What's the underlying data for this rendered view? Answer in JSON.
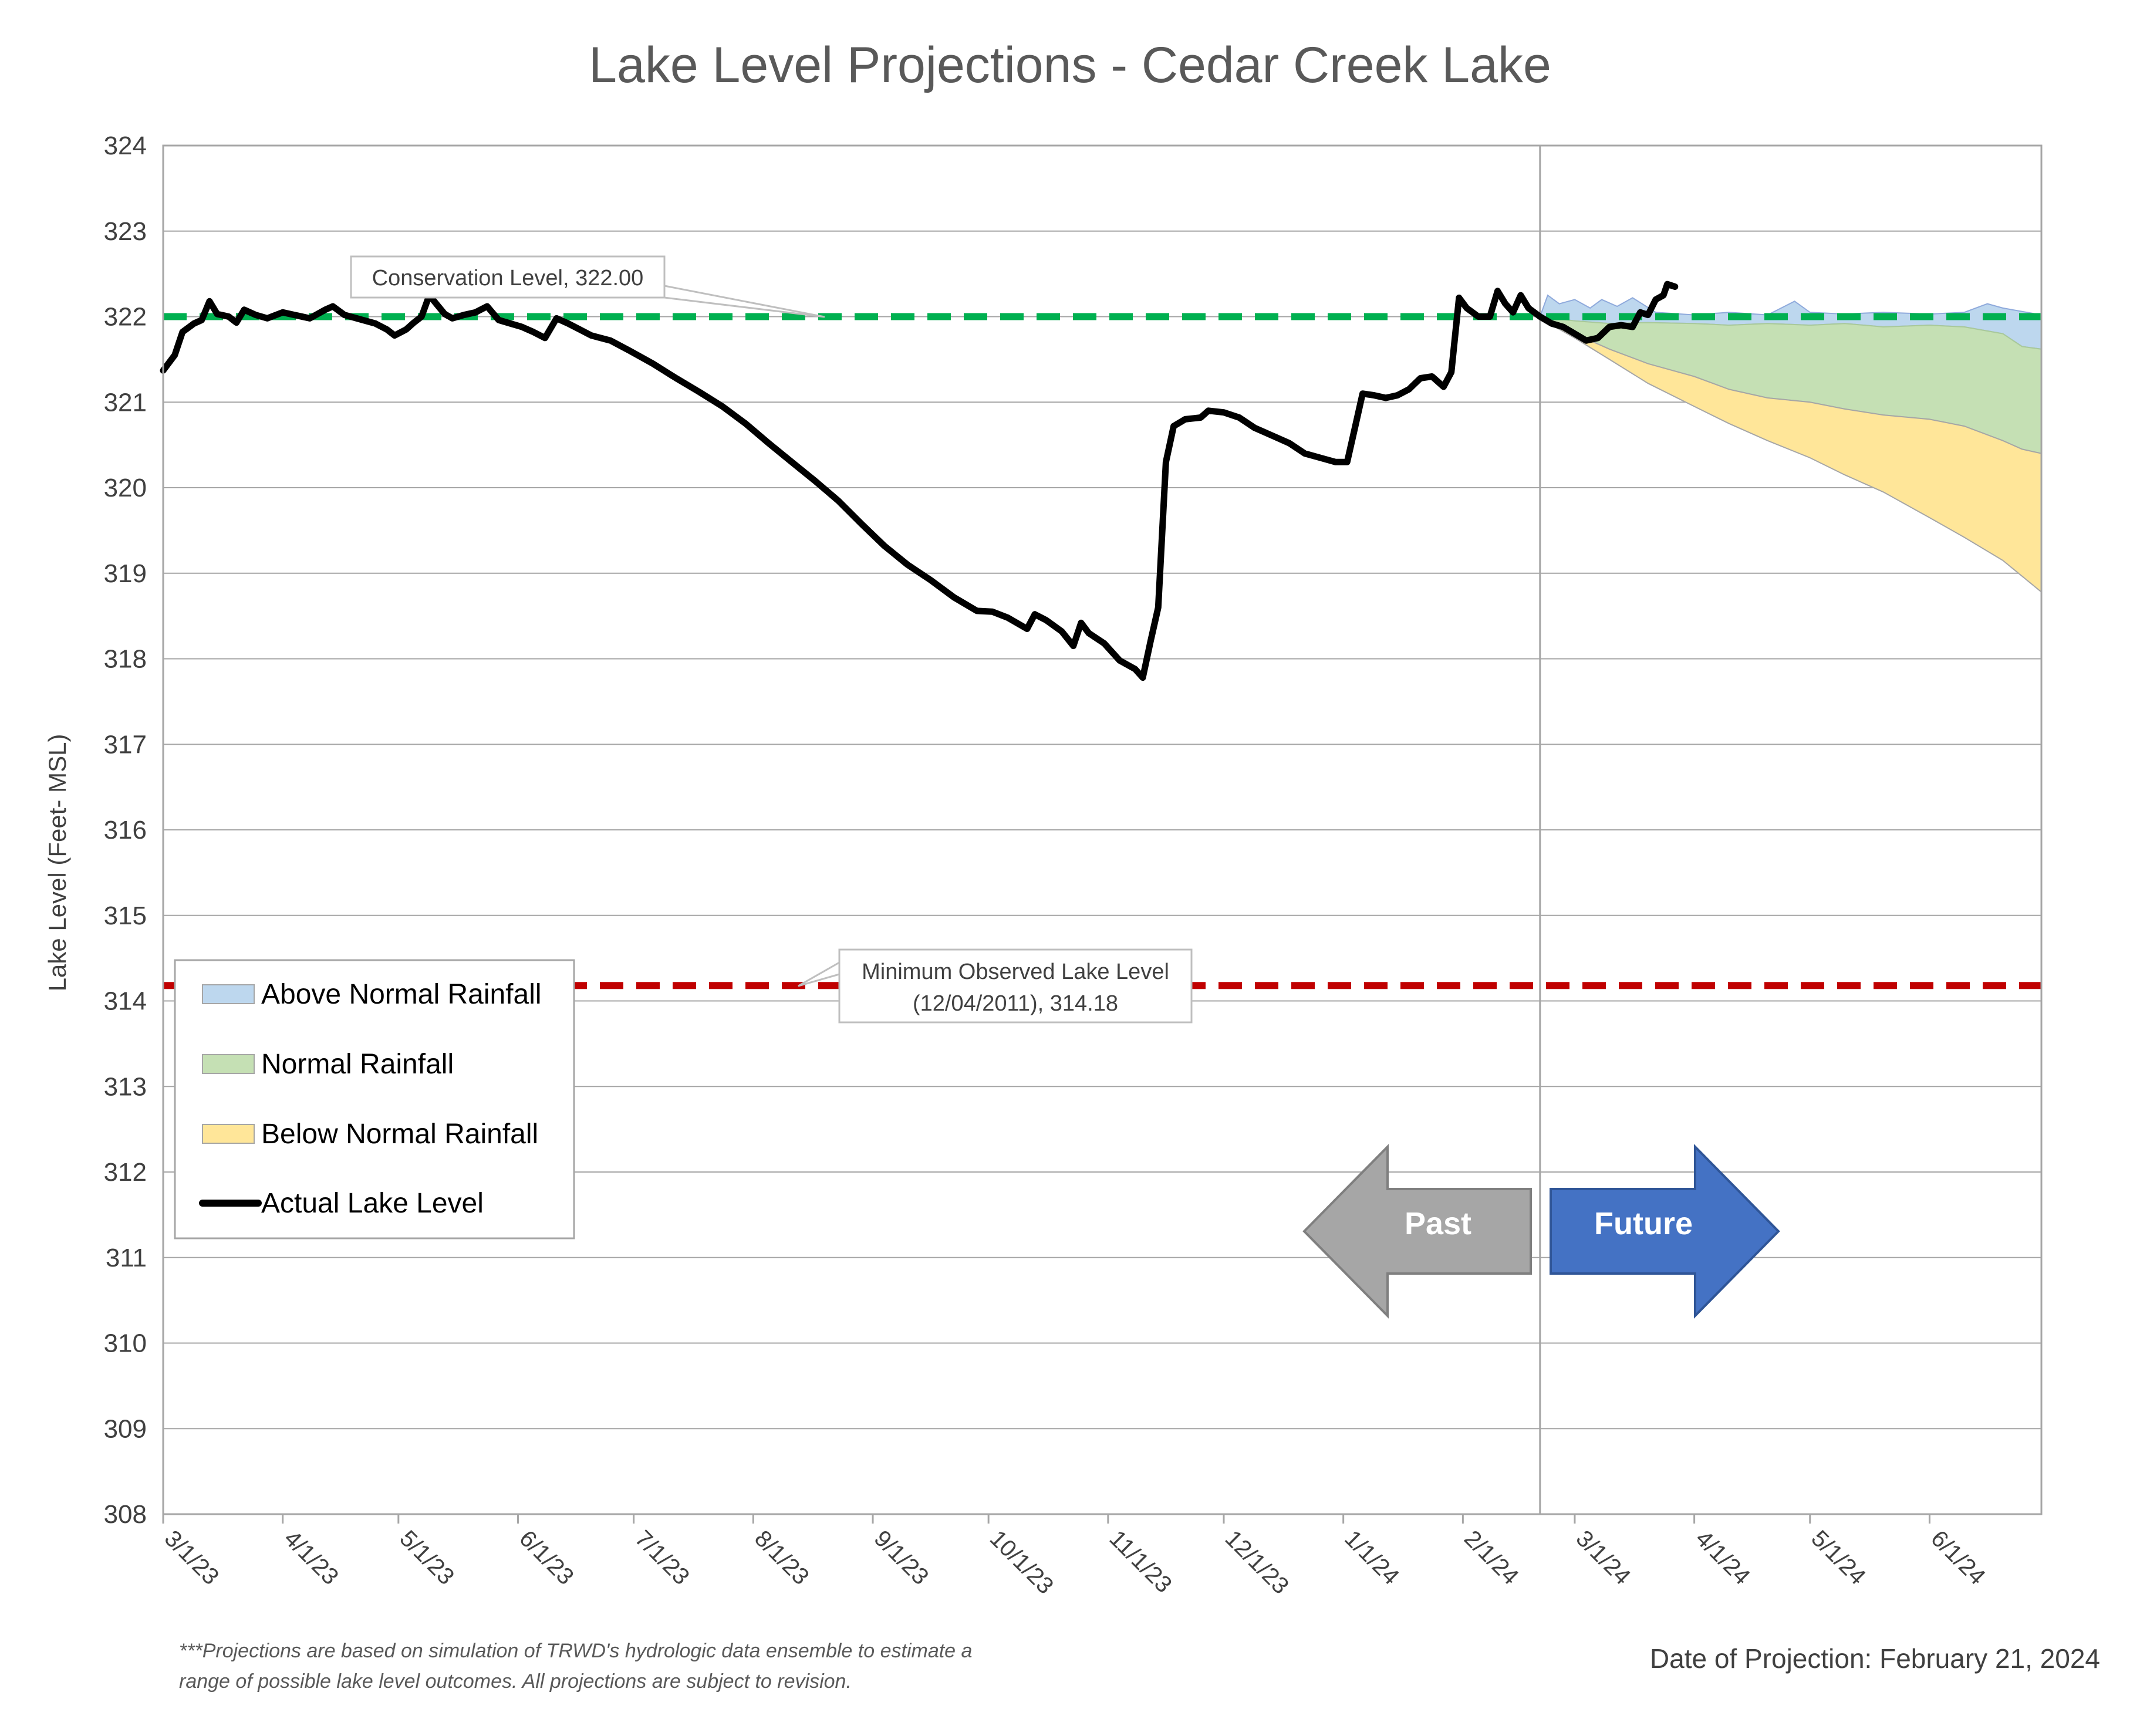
{
  "chart_data": {
    "type": "area",
    "title": "Lake Level Projections - Cedar Creek Lake",
    "ylabel": "Lake Level (Feet- MSL)",
    "xlabel": "",
    "ylim": [
      308,
      324
    ],
    "yticks": [
      308,
      309,
      310,
      311,
      312,
      313,
      314,
      315,
      316,
      317,
      318,
      319,
      320,
      321,
      322,
      323,
      324
    ],
    "xlim": [
      "2023-03-01",
      "2024-06-30"
    ],
    "xticks": [
      {
        "date": "2023-03-01",
        "label": "3/1/23"
      },
      {
        "date": "2023-04-01",
        "label": "4/1/23"
      },
      {
        "date": "2023-05-01",
        "label": "5/1/23"
      },
      {
        "date": "2023-06-01",
        "label": "6/1/23"
      },
      {
        "date": "2023-07-01",
        "label": "7/1/23"
      },
      {
        "date": "2023-08-01",
        "label": "8/1/23"
      },
      {
        "date": "2023-09-01",
        "label": "9/1/23"
      },
      {
        "date": "2023-10-01",
        "label": "10/1/23"
      },
      {
        "date": "2023-11-01",
        "label": "11/1/23"
      },
      {
        "date": "2023-12-01",
        "label": "12/1/23"
      },
      {
        "date": "2024-01-01",
        "label": "1/1/24"
      },
      {
        "date": "2024-02-01",
        "label": "2/1/24"
      },
      {
        "date": "2024-03-01",
        "label": "3/1/24"
      },
      {
        "date": "2024-04-01",
        "label": "4/1/24"
      },
      {
        "date": "2024-05-01",
        "label": "5/1/24"
      },
      {
        "date": "2024-06-01",
        "label": "6/1/24"
      }
    ],
    "grid": "horizontal",
    "legend_position": "left",
    "projection_date": "2024-02-21",
    "reference_lines": [
      {
        "name": "Conservation Level",
        "value": 322.0,
        "color": "#00b050",
        "style": "dashed",
        "label": "Conservation Level, 322.00"
      },
      {
        "name": "Minimum Observed Lake Level",
        "value": 314.18,
        "color": "#c00000",
        "style": "dashed",
        "label_line1": "Minimum Observed Lake Level",
        "label_line2": "(12/04/2011), 314.18"
      }
    ],
    "series": [
      {
        "name": "Actual Lake Level",
        "type": "line",
        "color": "#000000",
        "points": [
          [
            "2023-03-01",
            321.37
          ],
          [
            "2023-03-04",
            321.55
          ],
          [
            "2023-03-06",
            321.82
          ],
          [
            "2023-03-09",
            321.92
          ],
          [
            "2023-03-11",
            321.96
          ],
          [
            "2023-03-13",
            322.18
          ],
          [
            "2023-03-15",
            322.03
          ],
          [
            "2023-03-18",
            322.0
          ],
          [
            "2023-03-20",
            321.93
          ],
          [
            "2023-03-22",
            322.08
          ],
          [
            "2023-03-25",
            322.02
          ],
          [
            "2023-03-28",
            321.98
          ],
          [
            "2023-04-01",
            322.05
          ],
          [
            "2023-04-04",
            322.02
          ],
          [
            "2023-04-08",
            321.98
          ],
          [
            "2023-04-12",
            322.08
          ],
          [
            "2023-04-14",
            322.12
          ],
          [
            "2023-04-17",
            322.02
          ],
          [
            "2023-04-21",
            321.97
          ],
          [
            "2023-04-25",
            321.92
          ],
          [
            "2023-04-28",
            321.85
          ],
          [
            "2023-04-30",
            321.78
          ],
          [
            "2023-05-03",
            321.85
          ],
          [
            "2023-05-05",
            321.93
          ],
          [
            "2023-05-07",
            322.0
          ],
          [
            "2023-05-09",
            322.25
          ],
          [
            "2023-05-11",
            322.14
          ],
          [
            "2023-05-13",
            322.03
          ],
          [
            "2023-05-15",
            321.98
          ],
          [
            "2023-05-18",
            322.02
          ],
          [
            "2023-05-21",
            322.05
          ],
          [
            "2023-05-24",
            322.12
          ],
          [
            "2023-05-27",
            321.96
          ],
          [
            "2023-05-30",
            321.92
          ],
          [
            "2023-06-02",
            321.88
          ],
          [
            "2023-06-05",
            321.82
          ],
          [
            "2023-06-08",
            321.75
          ],
          [
            "2023-06-11",
            321.98
          ],
          [
            "2023-06-14",
            321.92
          ],
          [
            "2023-06-17",
            321.85
          ],
          [
            "2023-06-20",
            321.78
          ],
          [
            "2023-06-25",
            321.72
          ],
          [
            "2023-06-30",
            321.6
          ],
          [
            "2023-07-06",
            321.45
          ],
          [
            "2023-07-12",
            321.28
          ],
          [
            "2023-07-18",
            321.12
          ],
          [
            "2023-07-24",
            320.95
          ],
          [
            "2023-07-30",
            320.75
          ],
          [
            "2023-08-05",
            320.52
          ],
          [
            "2023-08-11",
            320.3
          ],
          [
            "2023-08-17",
            320.08
          ],
          [
            "2023-08-23",
            319.85
          ],
          [
            "2023-08-29",
            319.58
          ],
          [
            "2023-09-04",
            319.32
          ],
          [
            "2023-09-10",
            319.1
          ],
          [
            "2023-09-16",
            318.92
          ],
          [
            "2023-09-22",
            318.72
          ],
          [
            "2023-09-28",
            318.56
          ],
          [
            "2023-10-02",
            318.55
          ],
          [
            "2023-10-06",
            318.48
          ],
          [
            "2023-10-11",
            318.35
          ],
          [
            "2023-10-13",
            318.52
          ],
          [
            "2023-10-16",
            318.45
          ],
          [
            "2023-10-20",
            318.32
          ],
          [
            "2023-10-23",
            318.15
          ],
          [
            "2023-10-25",
            318.42
          ],
          [
            "2023-10-27",
            318.3
          ],
          [
            "2023-10-31",
            318.18
          ],
          [
            "2023-11-04",
            317.98
          ],
          [
            "2023-11-08",
            317.88
          ],
          [
            "2023-11-10",
            317.78
          ],
          [
            "2023-11-12",
            318.2
          ],
          [
            "2023-11-14",
            318.6
          ],
          [
            "2023-11-16",
            320.3
          ],
          [
            "2023-11-18",
            320.72
          ],
          [
            "2023-11-21",
            320.8
          ],
          [
            "2023-11-25",
            320.82
          ],
          [
            "2023-11-27",
            320.9
          ],
          [
            "2023-12-01",
            320.88
          ],
          [
            "2023-12-05",
            320.82
          ],
          [
            "2023-12-09",
            320.7
          ],
          [
            "2023-12-14",
            320.6
          ],
          [
            "2023-12-18",
            320.52
          ],
          [
            "2023-12-22",
            320.4
          ],
          [
            "2023-12-26",
            320.35
          ],
          [
            "2023-12-30",
            320.3
          ],
          [
            "2024-01-02",
            320.3
          ],
          [
            "2024-01-04",
            320.7
          ],
          [
            "2024-01-06",
            321.1
          ],
          [
            "2024-01-09",
            321.08
          ],
          [
            "2024-01-12",
            321.05
          ],
          [
            "2024-01-15",
            321.08
          ],
          [
            "2024-01-18",
            321.15
          ],
          [
            "2024-01-21",
            321.28
          ],
          [
            "2024-01-24",
            321.3
          ],
          [
            "2024-01-27",
            321.18
          ],
          [
            "2024-01-29",
            321.35
          ],
          [
            "2024-01-31",
            322.22
          ],
          [
            "2024-02-02",
            322.1
          ],
          [
            "2024-02-05",
            322.0
          ],
          [
            "2024-02-08",
            322.0
          ],
          [
            "2024-02-10",
            322.3
          ],
          [
            "2024-02-12",
            322.15
          ],
          [
            "2024-02-14",
            322.05
          ],
          [
            "2024-02-16",
            322.25
          ],
          [
            "2024-02-18",
            322.1
          ],
          [
            "2024-02-21",
            322.0
          ],
          [
            "2024-02-24",
            321.92
          ],
          [
            "2024-02-27",
            321.88
          ],
          [
            "2024-03-01",
            321.8
          ],
          [
            "2024-03-04",
            321.72
          ],
          [
            "2024-03-07",
            321.75
          ],
          [
            "2024-03-10",
            321.88
          ],
          [
            "2024-03-13",
            321.9
          ],
          [
            "2024-03-16",
            321.88
          ],
          [
            "2024-03-18",
            322.05
          ],
          [
            "2024-03-20",
            322.02
          ],
          [
            "2024-03-22",
            322.2
          ],
          [
            "2024-03-24",
            322.25
          ],
          [
            "2024-03-25",
            322.38
          ],
          [
            "2024-03-27",
            322.35
          ]
        ]
      },
      {
        "name": "Above Normal Rainfall",
        "type": "area",
        "color": "#bdd7ee",
        "points": [
          [
            "2024-02-21",
            322.0
          ],
          [
            "2024-02-23",
            322.25
          ],
          [
            "2024-02-26",
            322.15
          ],
          [
            "2024-03-01",
            322.2
          ],
          [
            "2024-03-05",
            322.1
          ],
          [
            "2024-03-08",
            322.2
          ],
          [
            "2024-03-12",
            322.12
          ],
          [
            "2024-03-16",
            322.22
          ],
          [
            "2024-03-22",
            322.05
          ],
          [
            "2024-04-01",
            322.02
          ],
          [
            "2024-04-10",
            322.05
          ],
          [
            "2024-04-20",
            322.02
          ],
          [
            "2024-04-27",
            322.18
          ],
          [
            "2024-05-01",
            322.05
          ],
          [
            "2024-05-10",
            322.03
          ],
          [
            "2024-05-20",
            322.05
          ],
          [
            "2024-06-01",
            322.03
          ],
          [
            "2024-06-10",
            322.05
          ],
          [
            "2024-06-16",
            322.15
          ],
          [
            "2024-06-20",
            322.1
          ],
          [
            "2024-06-30",
            322.02
          ]
        ]
      },
      {
        "name": "Normal Rainfall",
        "type": "area",
        "color": "#c5e0b4",
        "points": [
          [
            "2024-02-21",
            322.0
          ],
          [
            "2024-03-01",
            321.95
          ],
          [
            "2024-03-10",
            321.92
          ],
          [
            "2024-03-20",
            321.93
          ],
          [
            "2024-04-01",
            321.92
          ],
          [
            "2024-04-10",
            321.9
          ],
          [
            "2024-04-20",
            321.92
          ],
          [
            "2024-05-01",
            321.9
          ],
          [
            "2024-05-10",
            321.92
          ],
          [
            "2024-05-20",
            321.88
          ],
          [
            "2024-06-01",
            321.9
          ],
          [
            "2024-06-10",
            321.88
          ],
          [
            "2024-06-20",
            321.8
          ],
          [
            "2024-06-25",
            321.65
          ],
          [
            "2024-06-30",
            321.62
          ]
        ]
      },
      {
        "name": "Below Normal Rainfall",
        "type": "area",
        "color": "#ffe699",
        "points": [
          [
            "2024-02-21",
            321.98
          ],
          [
            "2024-03-01",
            321.8
          ],
          [
            "2024-03-10",
            321.62
          ],
          [
            "2024-03-20",
            321.45
          ],
          [
            "2024-04-01",
            321.3
          ],
          [
            "2024-04-10",
            321.15
          ],
          [
            "2024-04-20",
            321.05
          ],
          [
            "2024-05-01",
            321.0
          ],
          [
            "2024-05-10",
            320.92
          ],
          [
            "2024-05-20",
            320.85
          ],
          [
            "2024-06-01",
            320.8
          ],
          [
            "2024-06-10",
            320.72
          ],
          [
            "2024-06-20",
            320.55
          ],
          [
            "2024-06-25",
            320.45
          ],
          [
            "2024-06-30",
            320.4
          ]
        ]
      },
      {
        "name": "Below Normal Rainfall (lower bound)",
        "type": "area-bottom",
        "color": "#ffe699",
        "points": [
          [
            "2024-02-21",
            321.98
          ],
          [
            "2024-03-01",
            321.75
          ],
          [
            "2024-03-10",
            321.5
          ],
          [
            "2024-03-20",
            321.22
          ],
          [
            "2024-04-01",
            320.95
          ],
          [
            "2024-04-10",
            320.75
          ],
          [
            "2024-04-20",
            320.55
          ],
          [
            "2024-05-01",
            320.35
          ],
          [
            "2024-05-10",
            320.15
          ],
          [
            "2024-05-20",
            319.95
          ],
          [
            "2024-06-01",
            319.65
          ],
          [
            "2024-06-10",
            319.42
          ],
          [
            "2024-06-20",
            319.15
          ],
          [
            "2024-06-30",
            318.78
          ]
        ]
      }
    ],
    "annotations": {
      "past_label": "Past",
      "future_label": "Future",
      "footnote_line1": "***Projections are based on simulation of TRWD's hydrologic data ensemble to estimate a",
      "footnote_line2": "range of possible lake level outcomes.  All projections are subject to revision.",
      "projection_date_text": "Date of Projection: February 21, 2024"
    },
    "legend": [
      {
        "label": "Above Normal Rainfall",
        "color": "#bdd7ee",
        "kind": "area"
      },
      {
        "label": "Normal Rainfall",
        "color": "#c5e0b4",
        "kind": "area"
      },
      {
        "label": "Below Normal Rainfall",
        "color": "#ffe699",
        "kind": "area"
      },
      {
        "label": "Actual Lake Level",
        "color": "#000000",
        "kind": "line"
      }
    ],
    "colors": {
      "past_arrow": "#a6a6a6",
      "future_arrow": "#4472c4",
      "grid": "#a6a6a6"
    }
  }
}
